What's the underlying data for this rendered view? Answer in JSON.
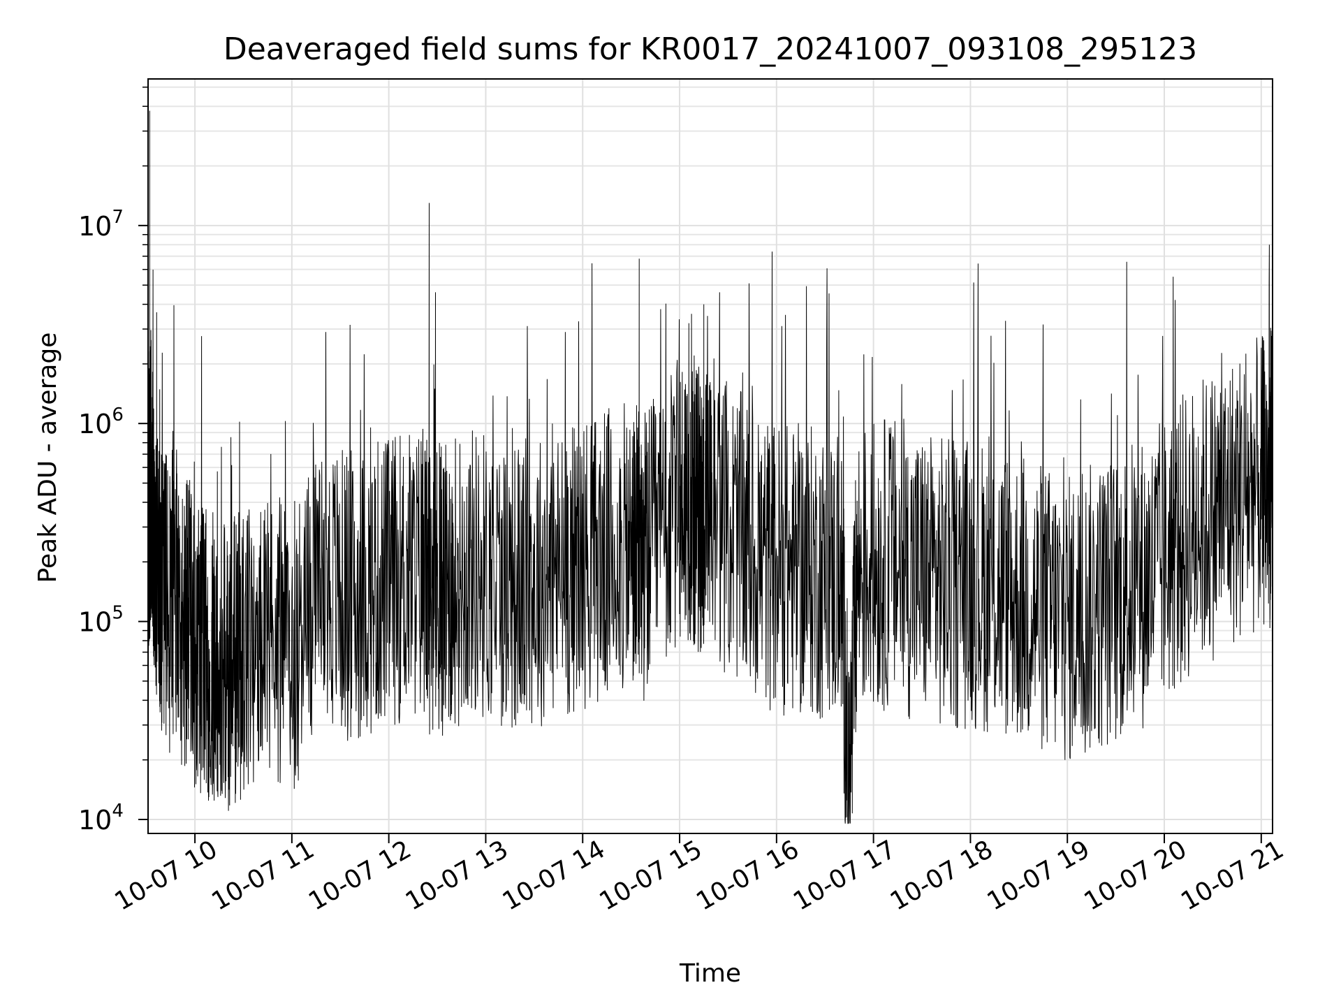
{
  "chart_data": {
    "type": "line",
    "title": "Deaveraged field sums for KR0017_20241007_093108_295123",
    "xlabel": "Time",
    "ylabel": "Peak ADU - average",
    "yscale": "log",
    "ylim": [
      8500,
      55000000
    ],
    "xlim": [
      "2024-10-07T09:31",
      "2024-10-07T21:07"
    ],
    "grid": true,
    "line_color": "#000000",
    "x_ticks": [
      "10-07 10",
      "10-07 11",
      "10-07 12",
      "10-07 13",
      "10-07 14",
      "10-07 15",
      "10-07 16",
      "10-07 17",
      "10-07 18",
      "10-07 19",
      "10-07 20",
      "10-07 21"
    ],
    "y_ticks": [
      {
        "base": "10",
        "exp": "4",
        "value": 10000
      },
      {
        "base": "10",
        "exp": "5",
        "value": 100000
      },
      {
        "base": "10",
        "exp": "6",
        "value": 1000000
      },
      {
        "base": "10",
        "exp": "7",
        "value": 10000000
      }
    ],
    "series": [
      {
        "x": [
          "2024-10-07T09:31",
          "2024-10-07T09:32",
          "2024-10-07T09:33",
          "2024-10-07T09:35",
          "2024-10-07T09:37",
          "2024-10-07T09:40",
          "2024-10-07T09:45",
          "2024-10-07T09:50",
          "2024-10-07T09:55",
          "2024-10-07T10:00",
          "2024-10-07T10:05",
          "2024-10-07T10:10",
          "2024-10-07T10:15",
          "2024-10-07T10:20",
          "2024-10-07T10:25",
          "2024-10-07T10:30",
          "2024-10-07T10:40",
          "2024-10-07T10:50",
          "2024-10-07T11:00",
          "2024-10-07T11:10",
          "2024-10-07T11:20",
          "2024-10-07T11:30",
          "2024-10-07T11:40",
          "2024-10-07T11:50",
          "2024-10-07T12:00",
          "2024-10-07T12:10",
          "2024-10-07T12:20",
          "2024-10-07T12:25",
          "2024-10-07T12:30",
          "2024-10-07T12:35",
          "2024-10-07T12:40",
          "2024-10-07T12:50",
          "2024-10-07T13:00",
          "2024-10-07T13:10",
          "2024-10-07T13:20",
          "2024-10-07T13:30",
          "2024-10-07T13:40",
          "2024-10-07T13:50",
          "2024-10-07T14:00",
          "2024-10-07T14:10",
          "2024-10-07T14:20",
          "2024-10-07T14:30",
          "2024-10-07T14:35",
          "2024-10-07T14:40",
          "2024-10-07T14:50",
          "2024-10-07T15:00",
          "2024-10-07T15:05",
          "2024-10-07T15:10",
          "2024-10-07T15:15",
          "2024-10-07T15:20",
          "2024-10-07T15:30",
          "2024-10-07T15:40",
          "2024-10-07T15:50",
          "2024-10-07T16:00",
          "2024-10-07T16:10",
          "2024-10-07T16:20",
          "2024-10-07T16:30",
          "2024-10-07T16:40",
          "2024-10-07T16:45",
          "2024-10-07T16:50",
          "2024-10-07T17:00",
          "2024-10-07T17:10",
          "2024-10-07T17:20",
          "2024-10-07T17:30",
          "2024-10-07T17:40",
          "2024-10-07T17:50",
          "2024-10-07T18:00",
          "2024-10-07T18:10",
          "2024-10-07T18:20",
          "2024-10-07T18:30",
          "2024-10-07T18:40",
          "2024-10-07T18:50",
          "2024-10-07T19:00",
          "2024-10-07T19:10",
          "2024-10-07T19:20",
          "2024-10-07T19:30",
          "2024-10-07T19:40",
          "2024-10-07T19:50",
          "2024-10-07T20:00",
          "2024-10-07T20:10",
          "2024-10-07T20:20",
          "2024-10-07T20:30",
          "2024-10-07T20:40",
          "2024-10-07T20:50",
          "2024-10-07T21:00",
          "2024-10-07T21:05",
          "2024-10-07T21:07"
        ],
        "y": [
          420000,
          38000000,
          600000,
          300000,
          150000,
          130000,
          120000,
          110000,
          95000,
          80000,
          70000,
          65000,
          60000,
          55000,
          62000,
          75000,
          70000,
          80000,
          70000,
          120000,
          150000,
          140000,
          130000,
          150000,
          160000,
          170000,
          180000,
          13000000,
          150000,
          140000,
          160000,
          180000,
          170000,
          160000,
          150000,
          160000,
          170000,
          180000,
          200000,
          210000,
          220000,
          230000,
          6800000,
          220000,
          280000,
          400000,
          450000,
          380000,
          4000000,
          350000,
          300000,
          250000,
          200000,
          190000,
          180000,
          180000,
          170000,
          160000,
          13000,
          180000,
          190000,
          200000,
          180000,
          170000,
          160000,
          150000,
          160000,
          150000,
          140000,
          130000,
          120000,
          110000,
          100000,
          110000,
          120000,
          130000,
          150000,
          160000,
          200000,
          250000,
          300000,
          350000,
          400000,
          450000,
          500000,
          8000000,
          600000
        ]
      }
    ],
    "noise": {
      "seed": 42,
      "samples_per_interval": 40,
      "spread_decades": 0.75
    }
  }
}
